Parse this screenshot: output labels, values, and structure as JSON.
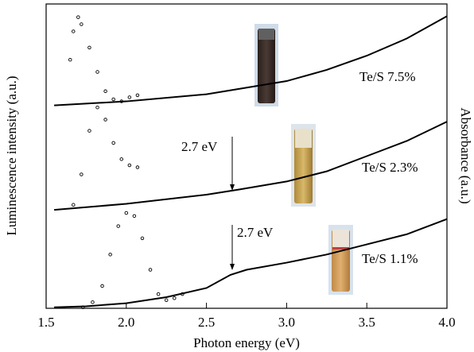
{
  "chart_data": {
    "type": "line",
    "x_label": "Photon energy (eV)",
    "y_label": "Luminescence intensity (a.u.)",
    "y2_label": "Absorbance (a.u.)",
    "xlim": [
      1.5,
      4.0
    ],
    "xticks": [
      1.5,
      {
        "value": 2,
        "label": "2.0"
      },
      2.5,
      {
        "value": 3,
        "label": "3.0"
      },
      3.5,
      {
        "value": 4,
        "label": "4.0"
      }
    ],
    "ylim": [
      0,
      3
    ],
    "series": [
      {
        "color": "#000000",
        "marker": "none",
        "x": [
          1.55,
          1.75,
          2.0,
          2.25,
          2.5,
          2.65,
          2.75,
          3.0,
          3.25,
          3.5,
          3.75,
          4.0
        ],
        "values": [
          0.01,
          0.02,
          0.05,
          0.11,
          0.2,
          0.33,
          0.38,
          0.45,
          0.53,
          0.63,
          0.73,
          0.88
        ]
      },
      {
        "color": "#000000",
        "marker": "none",
        "x": [
          1.55,
          2.0,
          2.5,
          2.7,
          3.0,
          3.25,
          3.5,
          3.75,
          4.0
        ],
        "values": [
          0.97,
          1.03,
          1.12,
          1.17,
          1.25,
          1.35,
          1.5,
          1.65,
          1.84
        ]
      },
      {
        "color": "#000000",
        "marker": "none",
        "x": [
          1.55,
          2.0,
          2.5,
          3.0,
          3.25,
          3.5,
          3.75,
          4.0
        ],
        "values": [
          2.0,
          2.04,
          2.11,
          2.24,
          2.35,
          2.49,
          2.66,
          2.88
        ]
      },
      {
        "color": "#000000",
        "marker": "circle",
        "x": [
          1.73,
          1.79,
          1.85,
          1.9,
          1.95,
          2.0,
          2.05,
          2.1,
          2.15,
          2.2,
          2.25,
          2.3,
          2.35
        ],
        "values": [
          0.01,
          0.06,
          0.22,
          0.53,
          0.81,
          0.94,
          0.91,
          0.69,
          0.38,
          0.14,
          0.08,
          0.1,
          0.14
        ]
      },
      {
        "color": "#000000",
        "marker": "circle",
        "x": [
          1.67,
          1.72,
          1.77,
          1.82,
          1.87,
          1.92,
          1.97,
          2.02,
          2.07
        ],
        "values": [
          1.02,
          1.32,
          1.75,
          1.98,
          1.86,
          1.63,
          1.47,
          1.41,
          1.39
        ]
      },
      {
        "color": "#000000",
        "marker": "circle",
        "x": [
          1.65,
          1.67,
          1.7,
          1.72,
          1.77,
          1.82,
          1.87,
          1.92,
          1.97,
          2.02,
          2.07
        ],
        "values": [
          2.45,
          2.73,
          2.87,
          2.8,
          2.57,
          2.33,
          2.14,
          2.06,
          2.04,
          2.08,
          2.1
        ]
      }
    ],
    "annotations": [
      "Te/S 7.5%",
      "2.7 eV",
      "Te/S 2.3%",
      "2.7 eV",
      "Te/S 1.1%"
    ]
  }
}
